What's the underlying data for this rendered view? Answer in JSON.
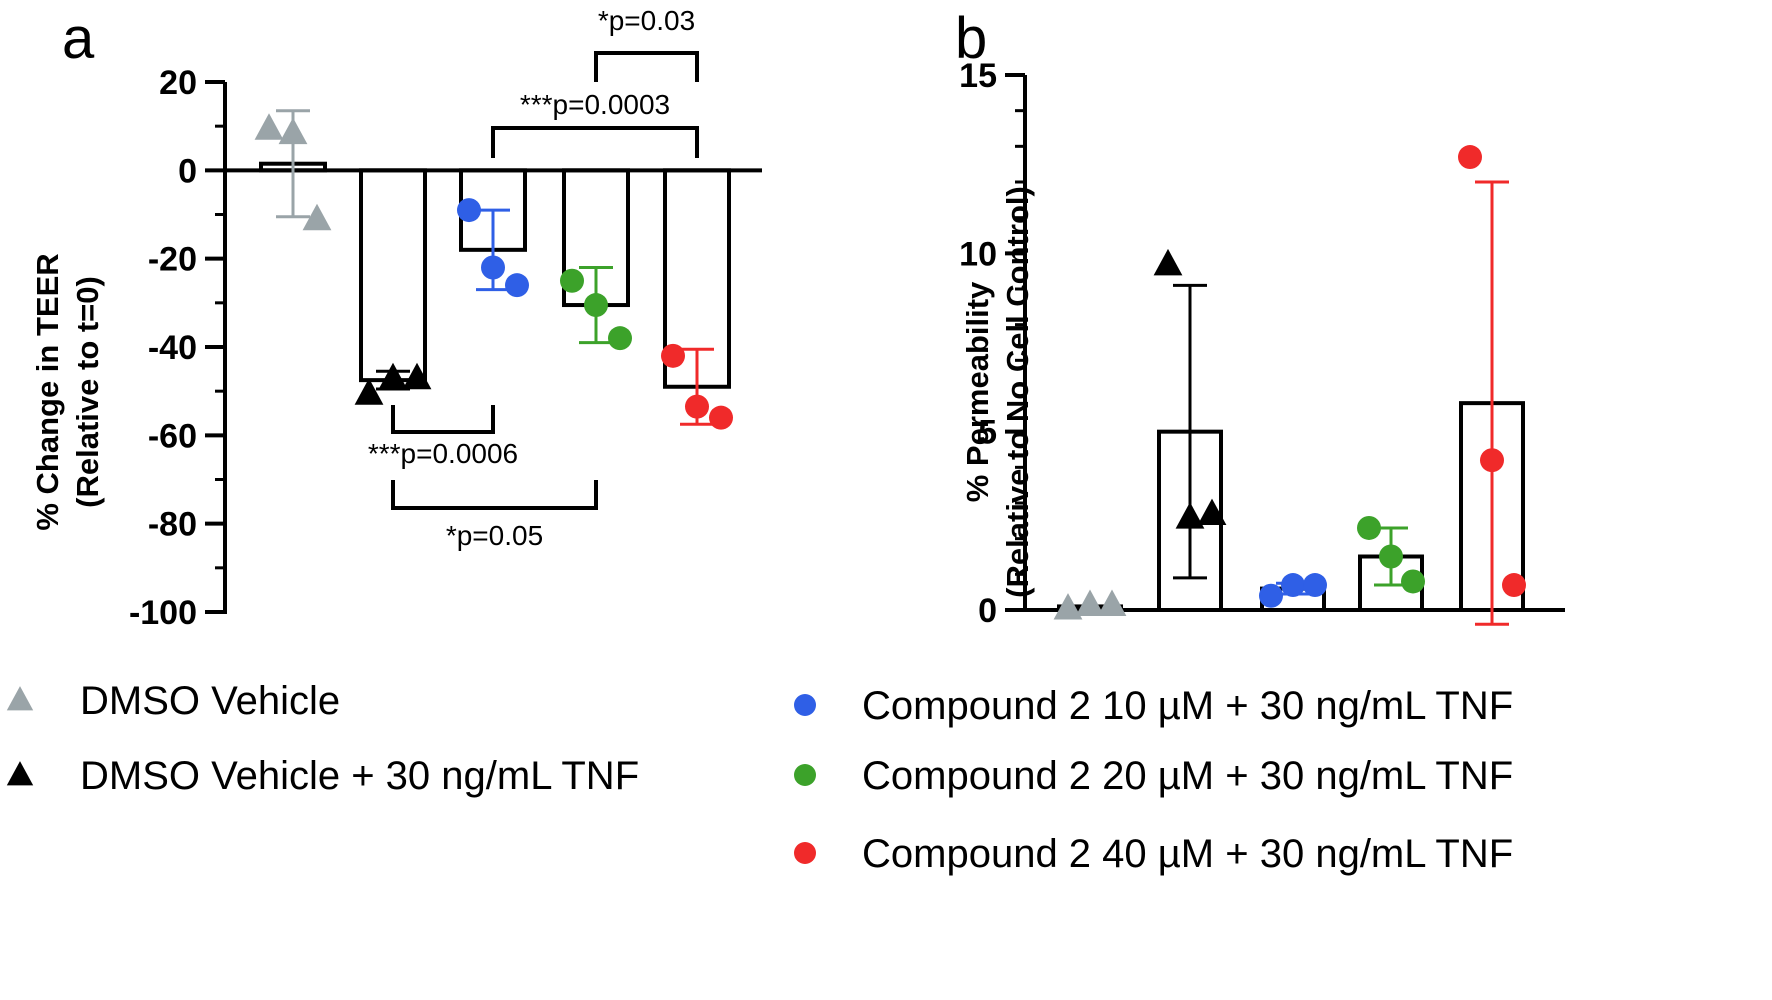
{
  "panels": {
    "a": {
      "label": "a"
    },
    "b": {
      "label": "b"
    }
  },
  "legend": [
    {
      "label": "DMSO Vehicle",
      "marker": "triangle",
      "color": "#9aa4a8"
    },
    {
      "label": "DMSO Vehicle + 30 ng/mL TNF",
      "marker": "triangle",
      "color": "#000000"
    },
    {
      "label": "Compound 2 10 µM + 30 ng/mL TNF",
      "marker": "circle",
      "color": "#2f5fe6"
    },
    {
      "label": "Compound 2 20 µM + 30 ng/mL TNF",
      "marker": "circle",
      "color": "#3ca22a"
    },
    {
      "label": "Compound 2 40 µM + 30 ng/mL TNF",
      "marker": "circle",
      "color": "#f02a2a"
    }
  ],
  "chart_data": [
    {
      "panel": "a",
      "type": "bar",
      "ylabel": "% Change in TEER",
      "ylabel_sub": "(Relative to t=0)",
      "ylim": [
        -100,
        20
      ],
      "yticks": [
        20,
        0,
        -20,
        -40,
        -60,
        -80,
        -100
      ],
      "ytick_labels": [
        "20",
        "0",
        "-20",
        "-40",
        "-60",
        "-80",
        "-100"
      ],
      "categories": [
        "DMSO Vehicle",
        "DMSO Vehicle + 30 ng/mL TNF",
        "Compound 2 10 µM + 30 ng/mL TNF",
        "Compound 2 20 µM + 30 ng/mL TNF",
        "Compound 2 40 µM + 30 ng/mL TNF"
      ],
      "values": [
        1.5,
        -47.5,
        -18,
        -30.5,
        -49
      ],
      "errors": [
        12,
        2,
        9,
        8.5,
        8.5
      ],
      "points": [
        [
          9.5,
          8.5,
          -11
        ],
        [
          -50.5,
          -47,
          -47
        ],
        [
          -9,
          -22,
          -26
        ],
        [
          -25,
          -30.5,
          -38
        ],
        [
          -42,
          -53.5,
          -56
        ]
      ],
      "colors": [
        "#9aa4a8",
        "#000000",
        "#2f5fe6",
        "#3ca22a",
        "#f02a2a"
      ],
      "markers": [
        "triangle",
        "triangle",
        "circle",
        "circle",
        "circle"
      ],
      "significance": [
        {
          "label": "*p=0.03",
          "from": 3,
          "to": 4,
          "position": "above"
        },
        {
          "label": "***p=0.0003",
          "from": 2,
          "to": 4,
          "position": "above"
        },
        {
          "label": "***p=0.0006",
          "from": 1,
          "to": 2,
          "position": "below"
        },
        {
          "label": "*p=0.05",
          "from": 1,
          "to": 3,
          "position": "below"
        }
      ]
    },
    {
      "panel": "b",
      "type": "bar",
      "ylabel": "% Permeability",
      "ylabel_sub": "(Relative to No Cell  Control)",
      "ylim": [
        0,
        15
      ],
      "yticks": [
        0,
        5,
        10,
        15
      ],
      "ytick_labels": [
        "0",
        "5",
        "10",
        "15"
      ],
      "categories": [
        "DMSO Vehicle",
        "DMSO Vehicle + 30 ng/mL TNF",
        "Compound 2 10 µM + 30 ng/mL TNF",
        "Compound 2 20 µM + 30 ng/mL TNF",
        "Compound 2 40 µM + 30 ng/mL TNF"
      ],
      "values": [
        0.1,
        5.0,
        0.6,
        1.5,
        5.8
      ],
      "errors": [
        0,
        4.1,
        0.15,
        0.8,
        6.2
      ],
      "points": [
        [
          0.05,
          0.15,
          0.15
        ],
        [
          9.7,
          2.6,
          2.7
        ],
        [
          0.4,
          0.7,
          0.7
        ],
        [
          2.3,
          1.5,
          0.8
        ],
        [
          12.7,
          4.2,
          0.7
        ]
      ],
      "colors": [
        "#9aa4a8",
        "#000000",
        "#2f5fe6",
        "#3ca22a",
        "#f02a2a"
      ],
      "markers": [
        "triangle",
        "triangle",
        "circle",
        "circle",
        "circle"
      ]
    }
  ]
}
